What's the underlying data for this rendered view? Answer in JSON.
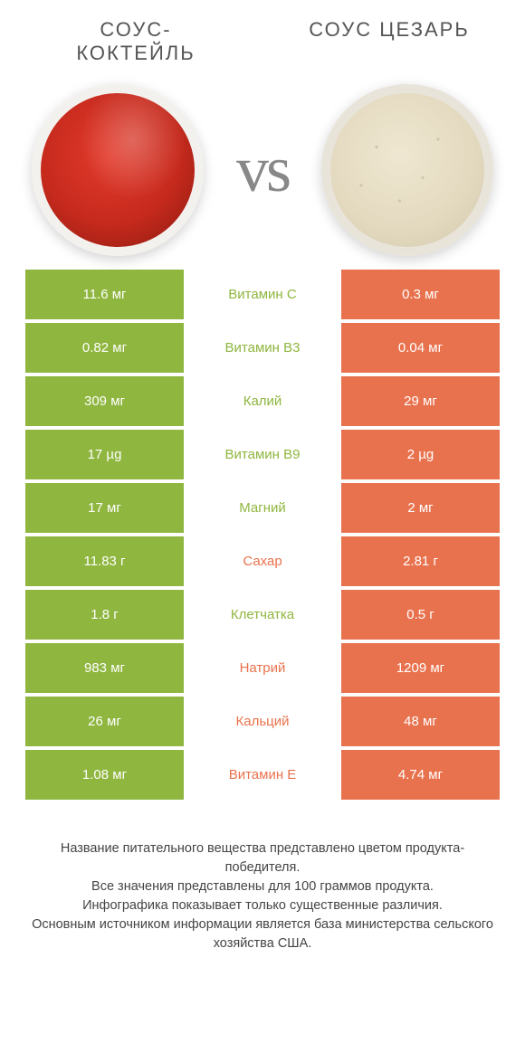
{
  "colors": {
    "green": "#8fb63f",
    "orange": "#e9724e",
    "white": "#ffffff",
    "mid_text_green": "#8fb63f",
    "mid_text_orange": "#e9724e"
  },
  "header": {
    "left_title": "СОУС-КОКТЕЙЛЬ",
    "right_title": "СОУС ЦЕЗАРЬ",
    "vs": "vs"
  },
  "rows": [
    {
      "left": "11.6 мг",
      "label": "Витамин C",
      "right": "0.3 мг",
      "winner": "left"
    },
    {
      "left": "0.82 мг",
      "label": "Витамин B3",
      "right": "0.04 мг",
      "winner": "left"
    },
    {
      "left": "309 мг",
      "label": "Калий",
      "right": "29 мг",
      "winner": "left"
    },
    {
      "left": "17 µg",
      "label": "Витамин B9",
      "right": "2 µg",
      "winner": "left"
    },
    {
      "left": "17 мг",
      "label": "Магний",
      "right": "2 мг",
      "winner": "left"
    },
    {
      "left": "11.83 г",
      "label": "Сахар",
      "right": "2.81 г",
      "winner": "right"
    },
    {
      "left": "1.8 г",
      "label": "Клетчатка",
      "right": "0.5 г",
      "winner": "left"
    },
    {
      "left": "983 мг",
      "label": "Натрий",
      "right": "1209 мг",
      "winner": "right"
    },
    {
      "left": "26 мг",
      "label": "Кальций",
      "right": "48 мг",
      "winner": "right"
    },
    {
      "left": "1.08 мг",
      "label": "Витамин E",
      "right": "4.74 мг",
      "winner": "right"
    }
  ],
  "footer": {
    "line1": "Название питательного вещества представлено цветом продукта-победителя.",
    "line2": "Все значения представлены для 100 граммов продукта.",
    "line3": "Инфографика показывает только существенные различия.",
    "line4": "Основным источником информации является база министерства сельского хозяйства США."
  }
}
